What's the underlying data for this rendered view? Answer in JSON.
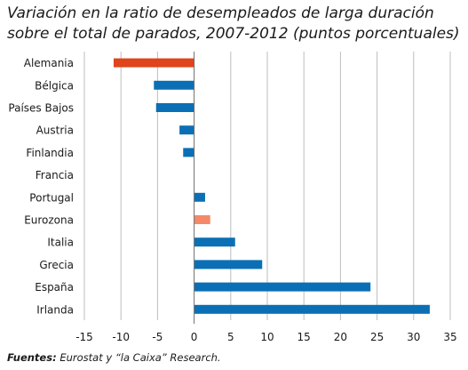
{
  "chart_data": {
    "type": "bar",
    "orientation": "horizontal",
    "title_line1": "Variación en la ratio de desempleados de larga duración",
    "title_line2": "sobre el total de parados, 2007-2012 (puntos porcentuales)",
    "categories": [
      "Alemania",
      "Bélgica",
      "Países Bajos",
      "Austria",
      "Finlandia",
      "Francia",
      "Portugal",
      "Eurozona",
      "Italia",
      "Grecia",
      "España",
      "Irlanda"
    ],
    "values": [
      -11.0,
      -5.5,
      -5.2,
      -2.0,
      -1.5,
      0.0,
      1.5,
      2.2,
      5.6,
      9.3,
      24.1,
      32.2
    ],
    "colors": [
      "#e0441c",
      "#0b6fb5",
      "#0b6fb5",
      "#0b6fb5",
      "#0b6fb5",
      "#0b6fb5",
      "#0b6fb5",
      "#f4896a",
      "#0b6fb5",
      "#0b6fb5",
      "#0b6fb5",
      "#0b6fb5"
    ],
    "xlim": [
      -15,
      35
    ],
    "xticks": [
      "-15",
      "-10",
      "-5",
      "0",
      "5",
      "10",
      "15",
      "20",
      "25",
      "30",
      "35"
    ],
    "grid": true,
    "legend": "none"
  },
  "source": {
    "label": "Fuentes:",
    "text": " Eurostat y “la Caixa” Research."
  }
}
